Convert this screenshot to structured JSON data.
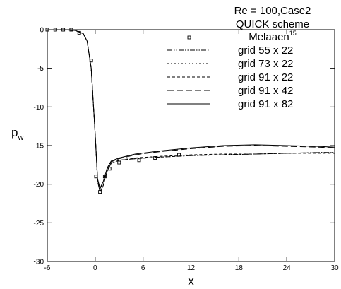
{
  "chart_data": {
    "type": "line",
    "title_lines": [
      "Re = 100,Case2",
      "QUICK scheme"
    ],
    "xlabel": "x",
    "ylabel": "p",
    "ylabel_sub": "w",
    "xlim": [
      -6,
      30
    ],
    "ylim": [
      -30,
      0
    ],
    "xticks": [
      -6,
      0,
      6,
      12,
      18,
      24,
      30
    ],
    "yticks": [
      0,
      -5,
      -10,
      -15,
      -20,
      -25,
      -30
    ],
    "grid": false,
    "legend_placement": "top-right",
    "series": [
      {
        "name": "Melaaen",
        "name_sup": "15",
        "style": "markers",
        "marker": "square-open",
        "x": [
          -6,
          -5,
          -4,
          -3,
          -2,
          -0.5,
          0.1,
          0.6,
          1.2,
          1.8,
          3,
          5.5,
          7.5,
          10.5
        ],
        "y": [
          0,
          0,
          0,
          0,
          -0.4,
          -4,
          -19,
          -21,
          -19,
          -18,
          -17.2,
          -16.9,
          -16.6,
          -16.2
        ]
      },
      {
        "name": "grid 55 x 22",
        "style": "dash-dot-dot",
        "x": [
          -6,
          -4,
          -2.5,
          -1.5,
          -1,
          -0.5,
          0,
          0.3,
          0.6,
          1,
          1.5,
          2,
          3,
          5,
          8,
          12,
          16,
          20,
          24,
          28,
          30
        ],
        "y": [
          0,
          0,
          -0.1,
          -0.5,
          -1.5,
          -5,
          -13.5,
          -19.5,
          -21,
          -20.2,
          -18.3,
          -17.3,
          -16.9,
          -16.7,
          -16.5,
          -16.3,
          -16.2,
          -16.1,
          -16.0,
          -15.9,
          -15.9
        ]
      },
      {
        "name": "grid 73 x 22",
        "style": "dotted",
        "x": [
          -6,
          -4,
          -2.5,
          -1.5,
          -1,
          -0.5,
          0,
          0.3,
          0.6,
          1,
          1.5,
          2,
          3,
          5,
          8,
          12,
          16,
          20,
          24,
          28,
          30
        ],
        "y": [
          0,
          0,
          -0.1,
          -0.5,
          -1.5,
          -5,
          -13.5,
          -19.6,
          -21,
          -20.2,
          -18.3,
          -17.3,
          -16.9,
          -16.7,
          -16.5,
          -16.3,
          -16.2,
          -16.1,
          -16.0,
          -15.9,
          -15.9
        ]
      },
      {
        "name": "grid 91 x 22",
        "style": "short-dash",
        "x": [
          -6,
          -4,
          -2.5,
          -1.5,
          -1,
          -0.5,
          0,
          0.3,
          0.6,
          1,
          1.5,
          2,
          3,
          5,
          8,
          12,
          16,
          20,
          24,
          28,
          30
        ],
        "y": [
          0,
          0,
          -0.1,
          -0.5,
          -1.5,
          -5,
          -13.5,
          -19.6,
          -21,
          -20.2,
          -18.3,
          -17.3,
          -16.9,
          -16.6,
          -16.4,
          -16.2,
          -16.1,
          -16.1,
          -16.0,
          -16.0,
          -16.0
        ]
      },
      {
        "name": "grid 91 x 42",
        "style": "long-dash",
        "x": [
          -6,
          -4,
          -2.5,
          -1.5,
          -1,
          -0.5,
          0,
          0.3,
          0.6,
          1,
          1.5,
          2,
          3,
          5,
          8,
          12,
          16,
          20,
          24,
          28,
          30
        ],
        "y": [
          0,
          0,
          -0.1,
          -0.5,
          -1.5,
          -5,
          -13.5,
          -19.4,
          -20.6,
          -19.8,
          -18,
          -17.1,
          -16.7,
          -16.2,
          -15.8,
          -15.4,
          -15.1,
          -15.0,
          -15.1,
          -15.2,
          -15.3
        ]
      },
      {
        "name": "grid 91 x 82",
        "style": "solid",
        "x": [
          -6,
          -4,
          -2.5,
          -1.5,
          -1,
          -0.5,
          0,
          0.3,
          0.6,
          1,
          1.5,
          2,
          3,
          5,
          8,
          12,
          16,
          20,
          24,
          28,
          30
        ],
        "y": [
          0,
          0,
          -0.1,
          -0.5,
          -1.5,
          -5,
          -13.5,
          -19.3,
          -20.5,
          -19.7,
          -17.9,
          -17.0,
          -16.6,
          -16.1,
          -15.7,
          -15.3,
          -15.0,
          -14.9,
          -15.0,
          -15.1,
          -15.2
        ]
      }
    ]
  }
}
